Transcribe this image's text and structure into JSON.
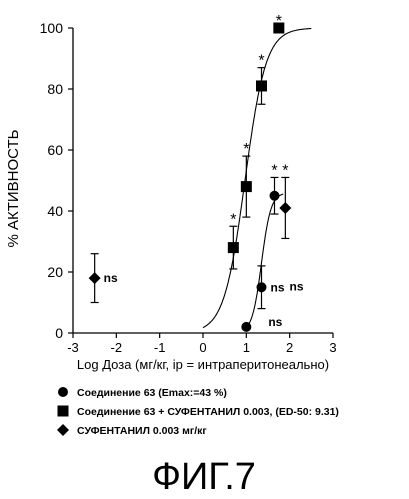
{
  "chart_data": {
    "type": "scatter",
    "xlabel": "Log Доза (мг/кг, ip = интраперитонеально)",
    "ylabel": "% АКТИВНОСТЬ",
    "xlim": [
      -3,
      3
    ],
    "ylim": [
      0,
      100
    ],
    "xticks": [
      "-3",
      "-2",
      "-1",
      "0",
      "1",
      "2",
      "3"
    ],
    "yticks": [
      "0",
      "20",
      "40",
      "60",
      "80",
      "100"
    ],
    "grid": false,
    "legend_position": "below",
    "series": [
      {
        "name": "Соединение 63  (Emax:=43 %)",
        "marker": "circle",
        "points": [
          {
            "x": 1.0,
            "y": 2,
            "err": 0
          },
          {
            "x": 1.35,
            "y": 15,
            "err": 7,
            "label": "ns"
          },
          {
            "x": 1.65,
            "y": 45,
            "err": 6,
            "label": "*"
          }
        ],
        "curve": {
          "bottom": 0,
          "top": 46,
          "ec50_log": 1.35,
          "hill": 4.0,
          "x_range": [
            1.0,
            1.85
          ]
        }
      },
      {
        "name": "Соединение 63 + СУФЕНТАНИЛ 0.003, (ED-50: 9.31)",
        "marker": "square",
        "points": [
          {
            "x": 0.7,
            "y": 28,
            "err": 7,
            "label": "*"
          },
          {
            "x": 1.0,
            "y": 48,
            "err": 10,
            "label": "*"
          },
          {
            "x": 1.35,
            "y": 81,
            "err": 6,
            "label": "*"
          },
          {
            "x": 1.75,
            "y": 100,
            "err": 0,
            "label": "*"
          }
        ],
        "curve": {
          "bottom": 0,
          "top": 100,
          "ec50_log": 0.969,
          "hill": 1.8,
          "x_range": [
            0.0,
            2.5
          ]
        }
      },
      {
        "name": "СУФЕНТАНИЛ 0.003 мг/кг",
        "marker": "diamond",
        "points": [
          {
            "x": -2.5,
            "y": 18,
            "err": 8,
            "label": "ns"
          },
          {
            "x": 1.9,
            "y": 41,
            "err": 10,
            "label": "*"
          }
        ]
      }
    ],
    "extra_labels": [
      {
        "text": "ns",
        "near": "circle series, right of x=1.35"
      },
      {
        "text": "ns",
        "near": "circle series, right of x=1.0"
      }
    ]
  },
  "figure_caption": "ФИГ.7"
}
